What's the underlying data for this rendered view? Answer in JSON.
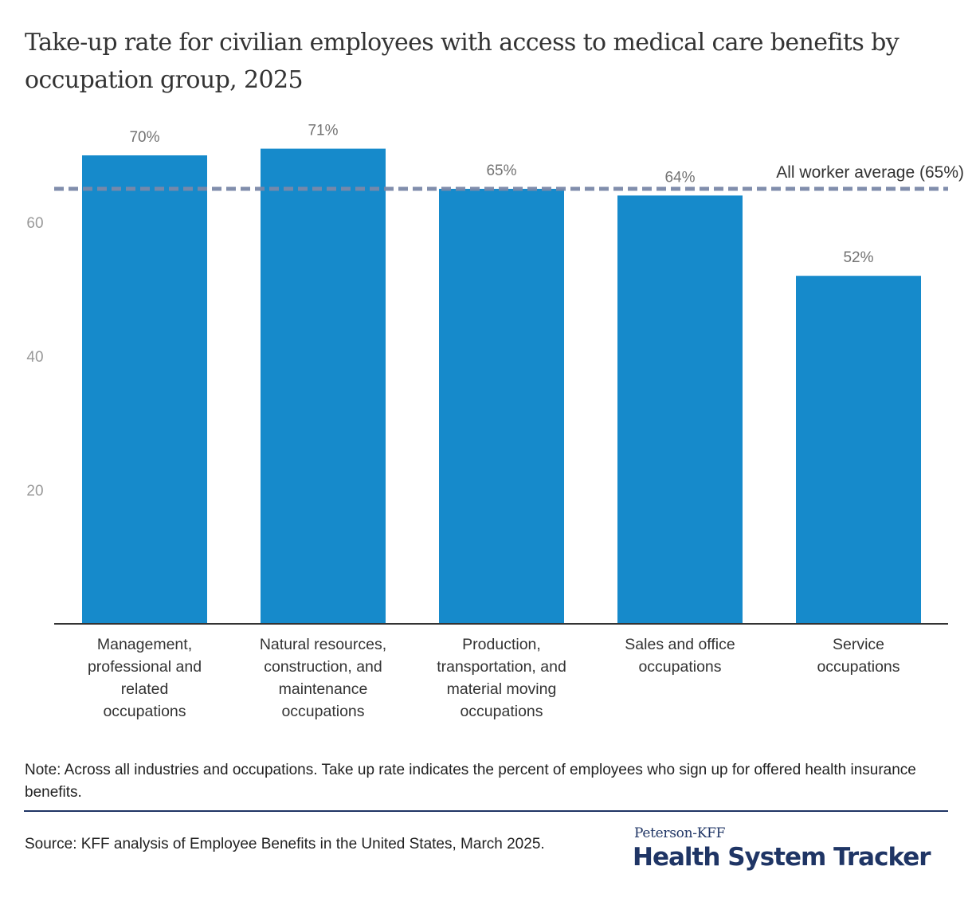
{
  "title": "Take-up rate for civilian employees with access to medical care benefits by occupation group, 2025",
  "note": "Note: Across all industries and occupations. Take up rate indicates the percent of employees who sign up for offered health insurance benefits.",
  "source": "Source: KFF analysis of Employee Benefits in the United States, March 2025.",
  "logo": {
    "top": "Peterson-KFF",
    "main": "Health System Tracker"
  },
  "colors": {
    "bar": "#168acb",
    "reference_line": "#7a88a8",
    "footer_rule": "#1f3565",
    "brand": "#1f3565"
  },
  "chart_data": {
    "type": "bar",
    "title": "Take-up rate for civilian employees with access to medical care benefits by occupation group, 2025",
    "xlabel": "",
    "ylabel": "",
    "categories": [
      "Management, professional and related occupations",
      "Natural resources, construction, and maintenance occupations",
      "Production, transportation, and material moving occupations",
      "Sales and office occupations",
      "Service occupations"
    ],
    "category_lines": [
      [
        "Management,",
        "professional and",
        "related",
        "occupations"
      ],
      [
        "Natural resources,",
        "construction, and",
        "maintenance",
        "occupations"
      ],
      [
        "Production,",
        "transportation, and",
        "material moving",
        "occupations"
      ],
      [
        "Sales and office",
        "occupations"
      ],
      [
        "Service",
        "occupations"
      ]
    ],
    "values": [
      70,
      71,
      65,
      64,
      52
    ],
    "data_labels": [
      "70%",
      "71%",
      "65%",
      "64%",
      "52%"
    ],
    "ylim": [
      0,
      80
    ],
    "yticks": [
      20,
      40,
      60
    ],
    "ytick_labels": [
      "20",
      "40",
      "60"
    ],
    "grid": false,
    "reference_line": {
      "value": 65,
      "label": "All worker average (65%)",
      "style": "dashed"
    },
    "legend": "none"
  }
}
